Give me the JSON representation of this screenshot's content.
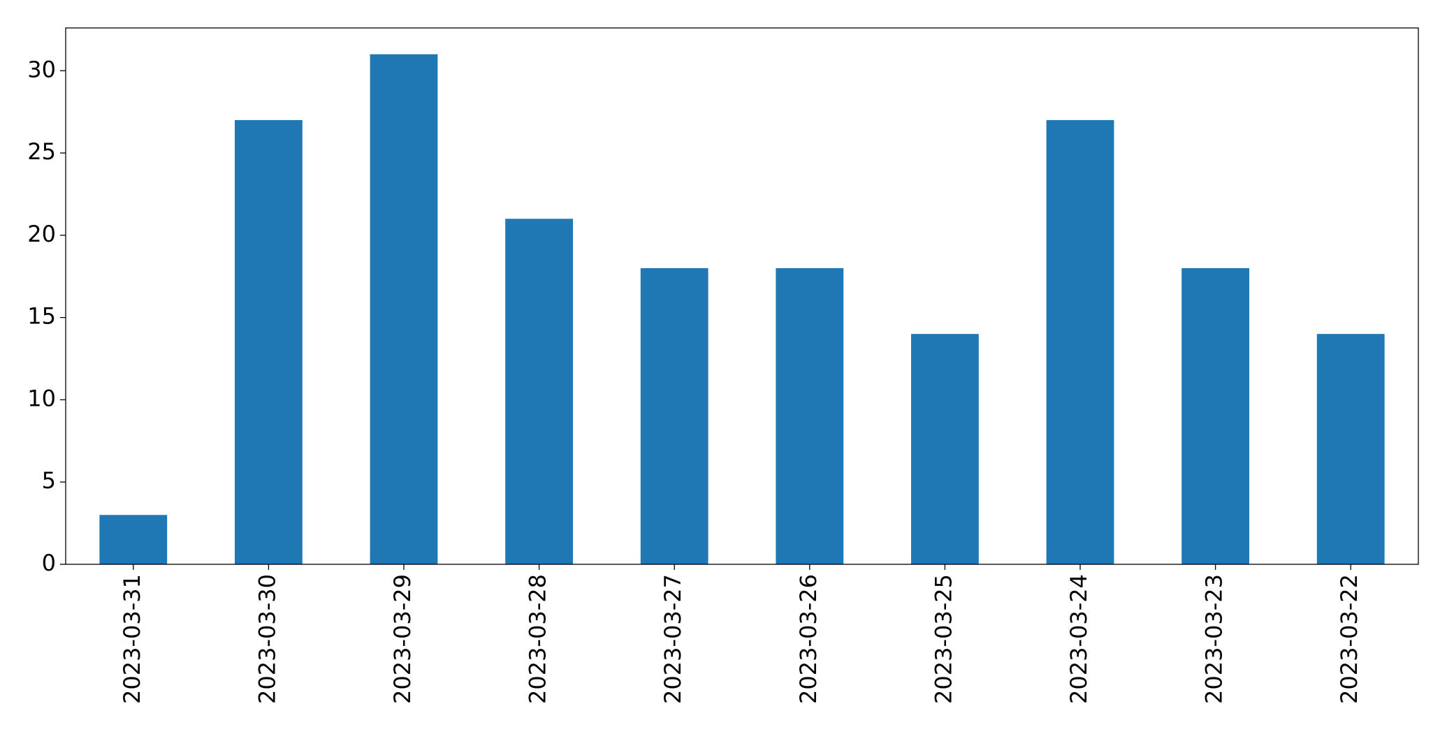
{
  "chart_data": {
    "type": "bar",
    "categories": [
      "2023-03-31",
      "2023-03-30",
      "2023-03-29",
      "2023-03-28",
      "2023-03-27",
      "2023-03-26",
      "2023-03-25",
      "2023-03-24",
      "2023-03-23",
      "2023-03-22"
    ],
    "values": [
      3,
      27,
      31,
      21,
      18,
      18,
      14,
      27,
      18,
      14
    ],
    "color": "#1f77b4",
    "ylim": [
      0,
      32.6
    ],
    "yticks": [
      0,
      5,
      10,
      15,
      20,
      25,
      30
    ],
    "grid": false
  }
}
